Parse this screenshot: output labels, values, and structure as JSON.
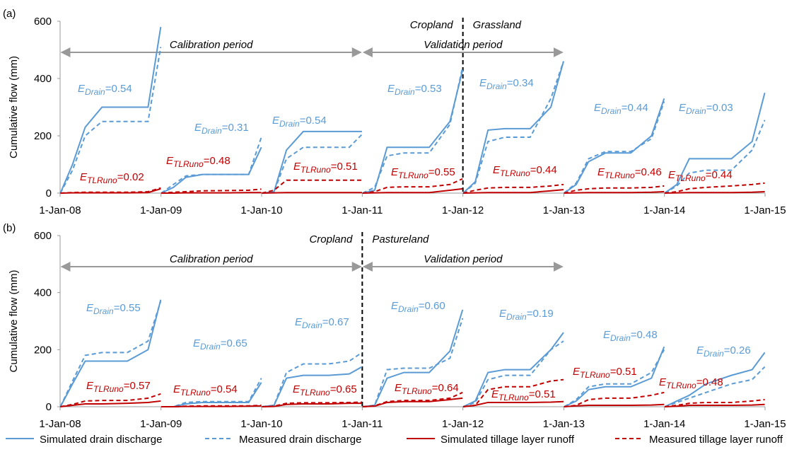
{
  "chart_data": [
    {
      "type": "line",
      "panel_label": "(a)",
      "y_label": "Cumulative flow (mm)",
      "ylim": [
        0,
        600
      ],
      "yticks": [
        0,
        200,
        400,
        600
      ],
      "xlim": [
        "2008-01-01",
        "2015-01-01"
      ],
      "xticks": [
        {
          "value": "2008-01-01",
          "label": "1-Jan-08"
        },
        {
          "value": "2009-01-01",
          "label": "1-Jan-09"
        },
        {
          "value": "2010-01-01",
          "label": "1-Jan-10"
        },
        {
          "value": "2011-01-01",
          "label": "1-Jan-11"
        },
        {
          "value": "2012-01-01",
          "label": "1-Jan-12"
        },
        {
          "value": "2013-01-01",
          "label": "1-Jan-13"
        },
        {
          "value": "2014-01-01",
          "label": "1-Jan-14"
        },
        {
          "value": "2015-01-01",
          "label": "1-Jan-15"
        }
      ],
      "x": [
        "2008-01-02",
        "2008-02-15",
        "2008-04-01",
        "2008-06-01",
        "2008-09-01",
        "2008-11-15",
        "2008-12-31",
        "2009-01-01",
        "2009-01-02",
        "2009-02-15",
        "2009-04-01",
        "2009-06-01",
        "2009-09-01",
        "2009-11-15",
        "2009-12-31",
        "2010-01-01",
        "2010-01-02",
        "2010-02-15",
        "2010-04-01",
        "2010-06-01",
        "2010-09-01",
        "2010-11-15",
        "2010-12-31",
        "2011-01-01",
        "2011-01-02",
        "2011-02-15",
        "2011-04-01",
        "2011-06-01",
        "2011-09-01",
        "2011-11-15",
        "2011-12-31",
        "2012-01-01",
        "2012-01-02",
        "2012-02-15",
        "2012-04-01",
        "2012-06-01",
        "2012-09-01",
        "2012-11-15",
        "2012-12-31",
        "2013-01-01",
        "2013-01-02",
        "2013-02-15",
        "2013-04-01",
        "2013-06-01",
        "2013-09-01",
        "2013-11-15",
        "2013-12-31",
        "2014-01-01",
        "2014-01-02",
        "2014-02-15",
        "2014-04-01",
        "2014-06-01",
        "2014-09-01",
        "2014-11-15",
        "2014-12-31"
      ],
      "series": [
        {
          "name": "Simulated drain discharge",
          "color": "#5b9bd5",
          "dash": false,
          "values": [
            0,
            100,
            230,
            300,
            300,
            300,
            580,
            null,
            0,
            20,
            55,
            65,
            65,
            65,
            160,
            null,
            0,
            5,
            150,
            215,
            215,
            215,
            215,
            null,
            0,
            10,
            160,
            160,
            160,
            250,
            430,
            null,
            0,
            40,
            220,
            225,
            225,
            300,
            460,
            null,
            0,
            30,
            110,
            140,
            140,
            200,
            330,
            null,
            0,
            30,
            120,
            120,
            120,
            180,
            350
          ]
        },
        {
          "name": "Measured drain discharge",
          "color": "#5b9bd5",
          "dash": true,
          "values": [
            0,
            80,
            200,
            250,
            250,
            250,
            510,
            null,
            0,
            30,
            60,
            65,
            65,
            65,
            195,
            null,
            0,
            4,
            120,
            160,
            160,
            160,
            205,
            null,
            0,
            20,
            130,
            140,
            140,
            240,
            440,
            null,
            0,
            35,
            180,
            195,
            195,
            330,
            460,
            null,
            0,
            35,
            120,
            145,
            145,
            190,
            320,
            null,
            0,
            25,
            70,
            80,
            80,
            150,
            255
          ]
        },
        {
          "name": "Simulated tillage layer runoff",
          "color": "#c00000",
          "dash": false,
          "values": [
            0,
            1,
            1,
            1,
            1,
            2,
            15,
            null,
            0,
            0,
            1,
            1,
            1,
            2,
            2,
            null,
            0,
            1,
            2,
            2,
            2,
            2,
            2,
            null,
            0,
            1,
            2,
            2,
            2,
            10,
            15,
            null,
            0,
            1,
            2,
            2,
            2,
            8,
            12,
            null,
            0,
            1,
            2,
            2,
            2,
            3,
            5,
            null,
            0,
            1,
            2,
            2,
            2,
            3,
            5
          ]
        },
        {
          "name": "Measured tillage layer runoff",
          "color": "#c00000",
          "dash": true,
          "values": [
            0,
            2,
            3,
            3,
            3,
            5,
            18,
            null,
            0,
            3,
            5,
            8,
            9,
            10,
            14,
            null,
            0,
            10,
            45,
            45,
            45,
            45,
            45,
            null,
            0,
            5,
            20,
            22,
            22,
            30,
            50,
            null,
            0,
            10,
            18,
            20,
            20,
            25,
            30,
            null,
            0,
            10,
            15,
            18,
            18,
            20,
            25,
            null,
            0,
            5,
            15,
            20,
            25,
            30,
            35
          ]
        }
      ],
      "periods": [
        {
          "label": "Calibration period",
          "start": "2008-01-01",
          "end": "2011-01-01"
        },
        {
          "label": "Validation period",
          "start": "2011-01-01",
          "end": "2013-01-01"
        }
      ],
      "landuse_change": {
        "date": "2012-01-01",
        "before": "Cropland",
        "after": "Grassland"
      },
      "annotations": [
        {
          "symbol": "E",
          "subscript": "Drain",
          "text": "=0.54",
          "color": "#5b9bd5"
        },
        {
          "symbol": "E",
          "subscript": "Drain",
          "text": "=0.31",
          "color": "#5b9bd5"
        },
        {
          "symbol": "E",
          "subscript": "Drain",
          "text": "=0.54",
          "color": "#5b9bd5"
        },
        {
          "symbol": "E",
          "subscript": "Drain",
          "text": "=0.53",
          "color": "#5b9bd5"
        },
        {
          "symbol": "E",
          "subscript": "Drain",
          "text": "=0.34",
          "color": "#5b9bd5"
        },
        {
          "symbol": "E",
          "subscript": "Drain",
          "text": "=0.44",
          "color": "#5b9bd5"
        },
        {
          "symbol": "E",
          "subscript": "Drain",
          "text": "=0.03",
          "color": "#5b9bd5"
        },
        {
          "symbol": "E",
          "subscript": "TLRuno",
          "text": "=0.02",
          "color": "#c00000"
        },
        {
          "symbol": "E",
          "subscript": "TLRuno",
          "text": "=0.48",
          "color": "#c00000"
        },
        {
          "symbol": "E",
          "subscript": "TLRuno",
          "text": "=0.51",
          "color": "#c00000"
        },
        {
          "symbol": "E",
          "subscript": "TLRuno",
          "text": "=0.55",
          "color": "#c00000"
        },
        {
          "symbol": "E",
          "subscript": "TLRuno",
          "text": "=0.44",
          "color": "#c00000"
        },
        {
          "symbol": "E",
          "subscript": "TLRuno",
          "text": "=0.46",
          "color": "#c00000"
        },
        {
          "symbol": "E",
          "subscript": "TLRuno",
          "text": "=0.44",
          "color": "#c00000"
        }
      ]
    },
    {
      "type": "line",
      "panel_label": "(b)",
      "y_label": "Cumulative flow (mm)",
      "ylim": [
        0,
        600
      ],
      "yticks": [
        0,
        200,
        400,
        600
      ],
      "xlim": [
        "2008-01-01",
        "2015-01-01"
      ],
      "xticks": [
        {
          "value": "2008-01-01",
          "label": "1-Jan-08"
        },
        {
          "value": "2009-01-01",
          "label": "1-Jan-09"
        },
        {
          "value": "2010-01-01",
          "label": "1-Jan-10"
        },
        {
          "value": "2011-01-01",
          "label": "1-Jan-11"
        },
        {
          "value": "2012-01-01",
          "label": "1-Jan-12"
        },
        {
          "value": "2013-01-01",
          "label": "1-Jan-13"
        },
        {
          "value": "2014-01-01",
          "label": "1-Jan-14"
        },
        {
          "value": "2015-01-01",
          "label": "1-Jan-15"
        }
      ],
      "x": [
        "2008-01-02",
        "2008-02-15",
        "2008-04-01",
        "2008-06-01",
        "2008-09-01",
        "2008-11-15",
        "2008-12-31",
        "2009-01-01",
        "2009-01-02",
        "2009-02-15",
        "2009-04-01",
        "2009-06-01",
        "2009-09-01",
        "2009-11-15",
        "2009-12-31",
        "2010-01-01",
        "2010-01-02",
        "2010-02-15",
        "2010-04-01",
        "2010-06-01",
        "2010-09-01",
        "2010-11-15",
        "2010-12-31",
        "2011-01-01",
        "2011-01-02",
        "2011-02-15",
        "2011-04-01",
        "2011-06-01",
        "2011-09-01",
        "2011-11-15",
        "2011-12-31",
        "2012-01-01",
        "2012-01-02",
        "2012-02-15",
        "2012-04-01",
        "2012-06-01",
        "2012-09-01",
        "2012-11-15",
        "2012-12-31",
        "2013-01-01",
        "2013-01-02",
        "2013-02-15",
        "2013-04-01",
        "2013-06-01",
        "2013-09-01",
        "2013-11-15",
        "2013-12-31",
        "2014-01-01",
        "2014-01-02",
        "2014-02-15",
        "2014-04-01",
        "2014-06-01",
        "2014-09-01",
        "2014-11-15",
        "2014-12-31"
      ],
      "series": [
        {
          "color": "#5b9bd5",
          "dash": false,
          "values": [
            0,
            80,
            160,
            160,
            160,
            200,
            375,
            null,
            0,
            0,
            10,
            15,
            15,
            15,
            85,
            null,
            0,
            5,
            100,
            110,
            110,
            115,
            140,
            null,
            0,
            5,
            100,
            120,
            120,
            195,
            340,
            null,
            0,
            20,
            120,
            130,
            130,
            200,
            260,
            null,
            0,
            20,
            60,
            70,
            70,
            100,
            210,
            null,
            0,
            20,
            40,
            80,
            110,
            130,
            190
          ]
        },
        {
          "color": "#5b9bd5",
          "dash": true,
          "values": [
            0,
            90,
            180,
            190,
            190,
            230,
            370,
            null,
            0,
            0,
            15,
            18,
            18,
            18,
            100,
            null,
            0,
            5,
            120,
            150,
            150,
            160,
            190,
            null,
            0,
            5,
            130,
            135,
            135,
            170,
            310,
            null,
            0,
            15,
            95,
            110,
            110,
            200,
            230,
            null,
            0,
            25,
            70,
            80,
            80,
            120,
            200,
            null,
            0,
            15,
            30,
            50,
            80,
            95,
            140
          ]
        },
        {
          "color": "#c00000",
          "dash": false,
          "values": [
            0,
            5,
            10,
            10,
            12,
            15,
            20,
            null,
            0,
            0,
            1,
            1,
            1,
            2,
            3,
            null,
            0,
            1,
            8,
            10,
            10,
            12,
            12,
            null,
            0,
            2,
            15,
            18,
            18,
            25,
            30,
            null,
            0,
            5,
            15,
            15,
            15,
            16,
            18,
            null,
            0,
            3,
            5,
            5,
            5,
            6,
            8,
            null,
            0,
            2,
            5,
            5,
            5,
            6,
            8
          ]
        },
        {
          "color": "#c00000",
          "dash": true,
          "values": [
            0,
            8,
            20,
            22,
            22,
            30,
            45,
            null,
            0,
            0,
            2,
            3,
            3,
            3,
            5,
            null,
            0,
            2,
            12,
            14,
            14,
            15,
            16,
            null,
            0,
            3,
            18,
            22,
            22,
            30,
            50,
            null,
            0,
            5,
            60,
            70,
            70,
            90,
            95,
            null,
            0,
            5,
            25,
            30,
            30,
            40,
            50,
            null,
            0,
            5,
            12,
            15,
            15,
            20,
            25
          ]
        }
      ],
      "periods": [
        {
          "label": "Calibration period",
          "start": "2008-01-01",
          "end": "2011-01-01"
        },
        {
          "label": "Validation period",
          "start": "2011-01-01",
          "end": "2013-01-01"
        }
      ],
      "landuse_change": {
        "date": "2011-01-01",
        "before": "Cropland",
        "after": "Pastureland"
      },
      "annotations": [
        {
          "symbol": "E",
          "subscript": "Drain",
          "text": "=0.55",
          "color": "#5b9bd5"
        },
        {
          "symbol": "E",
          "subscript": "Drain",
          "text": "=0.65",
          "color": "#5b9bd5"
        },
        {
          "symbol": "E",
          "subscript": "Drain",
          "text": "=0.67",
          "color": "#5b9bd5"
        },
        {
          "symbol": "E",
          "subscript": "Drain",
          "text": "=0.60",
          "color": "#5b9bd5"
        },
        {
          "symbol": "E",
          "subscript": "Drain",
          "text": "=0.19",
          "color": "#5b9bd5"
        },
        {
          "symbol": "E",
          "subscript": "Drain",
          "text": "=0.48",
          "color": "#5b9bd5"
        },
        {
          "symbol": "E",
          "subscript": "Drain",
          "text": "=0.26",
          "color": "#5b9bd5"
        },
        {
          "symbol": "E",
          "subscript": "TLRuno",
          "text": "=0.57",
          "color": "#c00000"
        },
        {
          "symbol": "E",
          "subscript": "TLRuno",
          "text": "=0.54",
          "color": "#c00000"
        },
        {
          "symbol": "E",
          "subscript": "TLRuno",
          "text": "=0.65",
          "color": "#c00000"
        },
        {
          "symbol": "E",
          "subscript": "TLRuno",
          "text": "=0.64",
          "color": "#c00000"
        },
        {
          "symbol": "E",
          "subscript": "TLRuno",
          "text": "=0.51",
          "color": "#c00000"
        },
        {
          "symbol": "E",
          "subscript": "TLRuno",
          "text": "=0.51",
          "color": "#c00000"
        },
        {
          "symbol": "E",
          "subscript": "TLRuno",
          "text": "=0.48",
          "color": "#c00000"
        }
      ]
    }
  ]
}
